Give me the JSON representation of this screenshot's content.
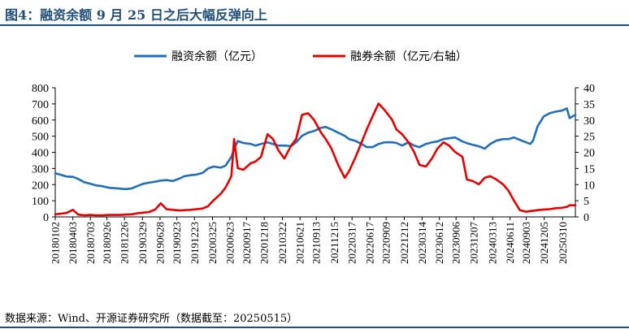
{
  "header": {
    "title": "图4：融资余额 9 月 25 日之后大幅反弹向上"
  },
  "footer": {
    "source": "数据来源：Wind、开源证券研究所（数据截至：20250515）"
  },
  "colors": {
    "financing": "#1f6fbd",
    "securities": "#e60000",
    "title": "#1f4e79"
  },
  "chart_data": {
    "type": "line",
    "x_tick_labels": [
      "20180102",
      "20180403",
      "20180703",
      "20180926",
      "20181226",
      "20190329",
      "20190628",
      "20190923",
      "20191223",
      "20200325",
      "20200623",
      "20200917",
      "20201218",
      "20210322",
      "20210621",
      "20210913",
      "20211215",
      "20220317",
      "20220617",
      "20220909",
      "20221212",
      "20230314",
      "20230612",
      "20230906",
      "20231207",
      "20240313",
      "20240611",
      "20240903",
      "20241205",
      "20250310"
    ],
    "x_range": [
      "20180102",
      "20250515"
    ],
    "y_left": {
      "label": "",
      "ticks": [
        0,
        100,
        200,
        300,
        400,
        500,
        600,
        700,
        800
      ],
      "range": [
        0,
        800
      ]
    },
    "y_right": {
      "label": "",
      "ticks": [
        0,
        5,
        10,
        15,
        20,
        25,
        30,
        35,
        40
      ],
      "range": [
        0,
        40
      ]
    },
    "grid": false,
    "legend_position": "top-center",
    "series": [
      {
        "name": "融资余额（亿元）",
        "axis": "left",
        "color": "#1f6fbd",
        "x": [
          "20180102",
          "20180201",
          "20180301",
          "20180403",
          "20180501",
          "20180601",
          "20180703",
          "20180801",
          "20180901",
          "20181009",
          "20181101",
          "20181201",
          "20190102",
          "20190201",
          "20190301",
          "20190401",
          "20190501",
          "20190603",
          "20190701",
          "20190801",
          "20190902",
          "20191008",
          "20191101",
          "20191202",
          "20200102",
          "20200203",
          "20200302",
          "20200401",
          "20200506",
          "20200601",
          "20200701",
          "20200715",
          "20200803",
          "20200901",
          "20201009",
          "20201102",
          "20201201",
          "20210104",
          "20210201",
          "20210301",
          "20210401",
          "20210506",
          "20210601",
          "20210701",
          "20210802",
          "20210901",
          "20211008",
          "20211101",
          "20211201",
          "20220104",
          "20220207",
          "20220301",
          "20220401",
          "20220505",
          "20220601",
          "20220701",
          "20220801",
          "20220901",
          "20221010",
          "20221101",
          "20221201",
          "20230103",
          "20230201",
          "20230301",
          "20230403",
          "20230504",
          "20230601",
          "20230703",
          "20230801",
          "20230901",
          "20231009",
          "20231101",
          "20231201",
          "20240102",
          "20240201",
          "20240301",
          "20240401",
          "20240506",
          "20240603",
          "20240701",
          "20240801",
          "20240902",
          "20240924",
          "20241008",
          "20241101",
          "20241202",
          "20250102",
          "20250203",
          "20250303",
          "20250401",
          "20250415",
          "20250515"
        ],
        "values": [
          270,
          260,
          250,
          248,
          235,
          215,
          205,
          195,
          190,
          180,
          178,
          175,
          172,
          176,
          190,
          205,
          212,
          218,
          225,
          228,
          222,
          238,
          252,
          258,
          262,
          272,
          300,
          312,
          305,
          318,
          372,
          420,
          470,
          458,
          452,
          442,
          452,
          462,
          452,
          442,
          442,
          438,
          462,
          502,
          522,
          532,
          552,
          557,
          542,
          522,
          502,
          482,
          472,
          452,
          432,
          432,
          452,
          462,
          462,
          458,
          442,
          462,
          442,
          432,
          452,
          462,
          467,
          482,
          487,
          492,
          467,
          457,
          447,
          437,
          422,
          452,
          472,
          482,
          482,
          492,
          477,
          462,
          452,
          472,
          562,
          622,
          642,
          652,
          657,
          672,
          612,
          632
        ]
      },
      {
        "name": "融券余额（亿元/右轴）",
        "axis": "right",
        "color": "#e60000",
        "x": [
          "20180102",
          "20180201",
          "20180301",
          "20180403",
          "20180501",
          "20180601",
          "20180703",
          "20180801",
          "20180901",
          "20181009",
          "20181101",
          "20181201",
          "20190102",
          "20190201",
          "20190301",
          "20190401",
          "20190501",
          "20190603",
          "20190701",
          "20190801",
          "20190902",
          "20191008",
          "20191101",
          "20191202",
          "20200102",
          "20200203",
          "20200302",
          "20200401",
          "20200506",
          "20200601",
          "20200701",
          "20200715",
          "20200803",
          "20200901",
          "20201009",
          "20201102",
          "20201201",
          "20210104",
          "20210201",
          "20210301",
          "20210401",
          "20210506",
          "20210601",
          "20210701",
          "20210802",
          "20210901",
          "20211008",
          "20211101",
          "20211201",
          "20220104",
          "20220207",
          "20220301",
          "20220401",
          "20220505",
          "20220601",
          "20220701",
          "20220801",
          "20220901",
          "20221010",
          "20221101",
          "20221201",
          "20230103",
          "20230201",
          "20230301",
          "20230403",
          "20230504",
          "20230601",
          "20230703",
          "20230801",
          "20230901",
          "20231009",
          "20231101",
          "20231201",
          "20240102",
          "20240201",
          "20240301",
          "20240401",
          "20240506",
          "20240603",
          "20240701",
          "20240801",
          "20240902",
          "20240924",
          "20241008",
          "20241101",
          "20241202",
          "20250102",
          "20250203",
          "20250303",
          "20250401",
          "20250415",
          "20250515"
        ],
        "values": [
          0.8,
          1.0,
          1.2,
          2.2,
          0.7,
          0.5,
          0.6,
          0.5,
          0.5,
          0.6,
          0.6,
          0.6,
          0.7,
          0.8,
          1.1,
          1.3,
          1.5,
          2.3,
          4.2,
          2.4,
          2.2,
          2.0,
          2.1,
          2.2,
          2.4,
          2.6,
          3.3,
          5.2,
          7.1,
          9.1,
          12.6,
          24.1,
          15.1,
          14.6,
          16.6,
          17.1,
          18.6,
          25.6,
          24.1,
          20.6,
          18.1,
          22.1,
          24.1,
          31.6,
          32.1,
          30.1,
          26.1,
          24.1,
          21.1,
          16.1,
          12.1,
          14.1,
          18.1,
          23.1,
          27.1,
          31.1,
          35.1,
          33.1,
          30.1,
          27.1,
          25.6,
          23.1,
          20.1,
          16.1,
          15.6,
          18.1,
          21.1,
          23.1,
          22.1,
          20.1,
          18.6,
          11.6,
          11.1,
          10.1,
          12.1,
          12.6,
          11.6,
          10.1,
          8.1,
          5.1,
          2.1,
          1.6,
          1.8,
          1.9,
          2.1,
          2.3,
          2.4,
          2.7,
          2.8,
          3.1,
          3.6,
          3.6
        ]
      }
    ]
  }
}
